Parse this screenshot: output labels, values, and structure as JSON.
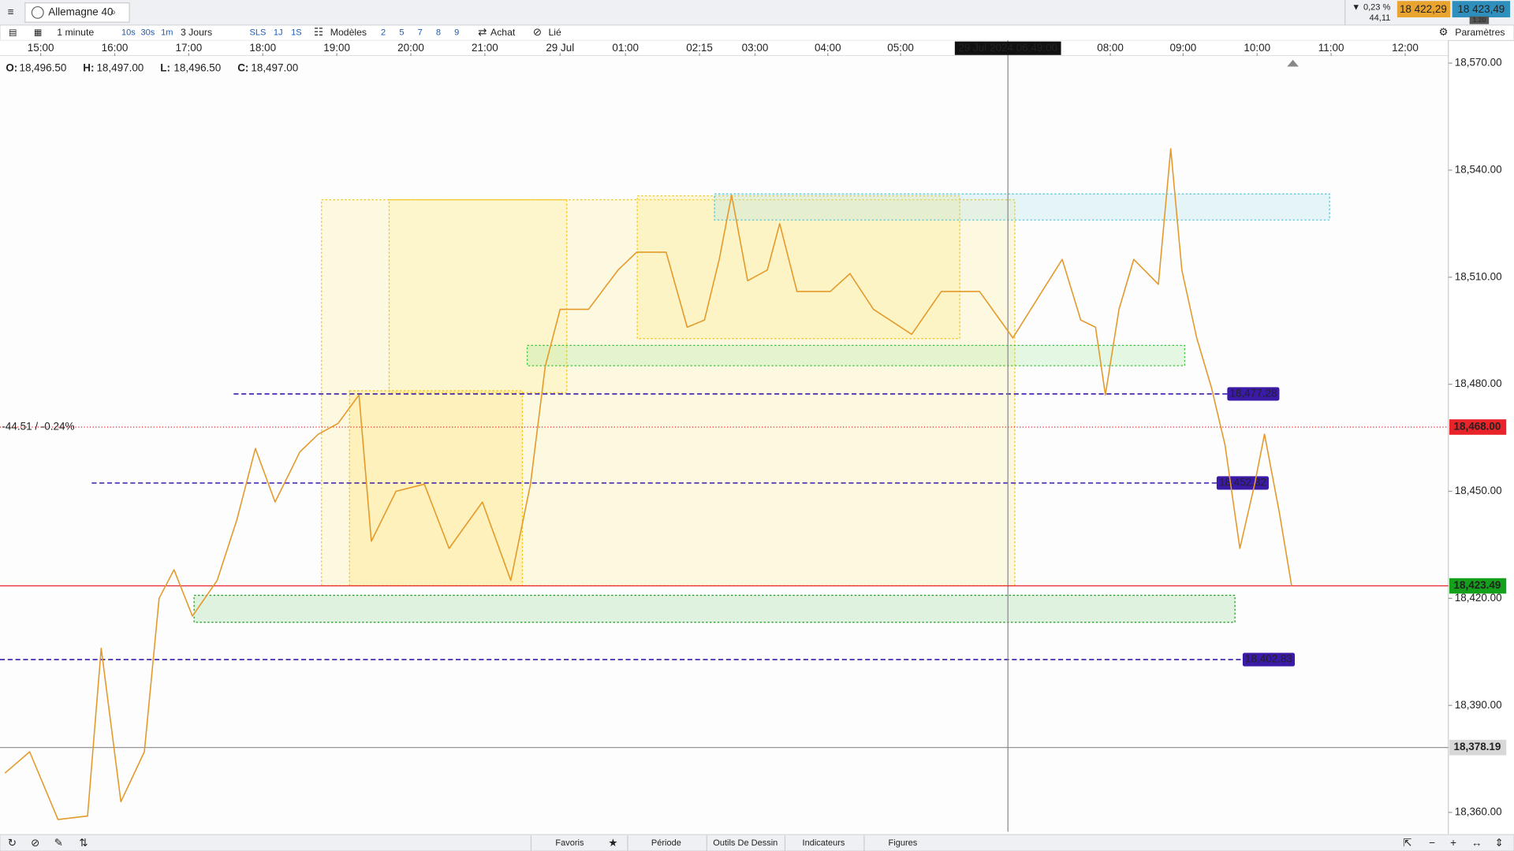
{
  "toolbar": {
    "instrument": "Allemagne 40",
    "interval": "1 minute",
    "quick_intervals": [
      "10s",
      "30s",
      "1m"
    ],
    "range": "3 Jours",
    "range_buttons": [
      "SLS",
      "1J",
      "1S"
    ],
    "templates": "Modèles",
    "layouts": [
      "2",
      "5",
      "7",
      "8",
      "9"
    ],
    "buy": "Achat",
    "linked": "Lié",
    "settings": "Paramètres",
    "change_pct": "0,23 %",
    "change_abs": "44,11",
    "bid": "18 422,29",
    "spread": "1.20",
    "ask": "18 423,49"
  },
  "ohlc": {
    "o_label": "O:",
    "o": "18,496.50",
    "h_label": "H:",
    "h": "18,497.00",
    "l_label": "L:",
    "l": "18,496.50",
    "c_label": "C:",
    "c": "18,497.00"
  },
  "bottom_bar": [
    "Favoris",
    "Période",
    "Outils De Dessin",
    "Indicateurs",
    "Figures"
  ],
  "chart_data": {
    "type": "line",
    "color": "#e39a2b",
    "x": [
      -29,
      -9,
      14,
      38,
      49,
      65,
      84,
      96,
      108,
      123,
      143,
      159,
      174,
      190,
      210,
      225,
      241,
      258,
      268,
      288,
      311,
      331,
      358,
      381,
      397,
      409,
      421,
      444,
      468,
      483,
      507,
      524,
      538,
      550,
      560,
      573,
      589,
      599,
      613,
      640,
      656,
      675,
      706,
      730,
      761,
      788,
      808,
      828,
      843,
      855,
      863,
      874,
      886,
      906,
      916,
      925,
      937,
      949,
      960,
      972,
      984,
      992,
      1004,
      1014
    ],
    "values": [
      18371,
      18377,
      18358,
      18359,
      18406,
      18363,
      18377,
      18420,
      18428,
      18415,
      18425,
      18442,
      18462,
      18447,
      18461,
      18466,
      18469,
      18477,
      18436,
      18450,
      18452,
      18434,
      18447,
      18425,
      18452,
      18485,
      18501,
      18501,
      18512,
      18517,
      18517,
      18496,
      18498,
      18515,
      18533,
      18509,
      18512,
      18525,
      18506,
      18506,
      18511,
      18501,
      18494,
      18506,
      18506,
      18493,
      18504,
      18515,
      18498,
      18496,
      18477,
      18501,
      18515,
      18508,
      18546,
      18512,
      18493,
      18479,
      18463,
      18434,
      18452,
      18466,
      18444,
      18423.49
    ],
    "xlim": [
      -33,
      1141
    ],
    "xticks": [
      {
        "value": 0,
        "label": "15:00"
      },
      {
        "value": 60,
        "label": "16:00"
      },
      {
        "value": 120,
        "label": "17:00"
      },
      {
        "value": 180,
        "label": "18:00"
      },
      {
        "value": 240,
        "label": "19:00"
      },
      {
        "value": 300,
        "label": "20:00"
      },
      {
        "value": 360,
        "label": "21:00"
      },
      {
        "value": 421,
        "label": "29 Jul"
      },
      {
        "value": 474,
        "label": "01:00"
      },
      {
        "value": 534,
        "label": "02:15"
      },
      {
        "value": 579,
        "label": "03:00"
      },
      {
        "value": 638,
        "label": "04:00"
      },
      {
        "value": 697,
        "label": "05:00"
      },
      {
        "value": 867,
        "label": "08:00"
      },
      {
        "value": 926,
        "label": "09:00"
      },
      {
        "value": 986,
        "label": "10:00"
      },
      {
        "value": 1046,
        "label": "11:00"
      },
      {
        "value": 1106,
        "label": "12:00"
      }
    ],
    "ylim": [
      18354.6,
      18572
    ],
    "yticks": [
      {
        "value": 18570,
        "label": "18,570.00"
      },
      {
        "value": 18540,
        "label": "18,540.00"
      },
      {
        "value": 18510,
        "label": "18,510.00"
      },
      {
        "value": 18480,
        "label": "18,480.00"
      },
      {
        "value": 18450,
        "label": "18,450.00"
      },
      {
        "value": 18420,
        "label": "18,420.00"
      },
      {
        "value": 18390,
        "label": "18,390.00"
      },
      {
        "value": 18360,
        "label": "18,360.00"
      }
    ],
    "levels": [
      {
        "value": 18477.28,
        "label": "18,477.28",
        "color": "#3b1aa8"
      },
      {
        "value": 18452.32,
        "label": "18,452.32",
        "color": "#3b1aa8"
      },
      {
        "value": 18402.83,
        "label": "18,402.83",
        "color": "#3b1aa8"
      }
    ],
    "reference": {
      "value": 18468.0,
      "label": "18,468.00",
      "annotation": "-44.51 / -0.24%",
      "color": "#e8242a"
    },
    "last_price": {
      "value": 18423.49,
      "label": "18,423.49",
      "color": "#13a01a"
    },
    "crosshair": {
      "x": 784,
      "label": "29 Jul 2024 06:49:00",
      "price": {
        "value": 18378.19,
        "label": "18,378.19"
      }
    }
  }
}
